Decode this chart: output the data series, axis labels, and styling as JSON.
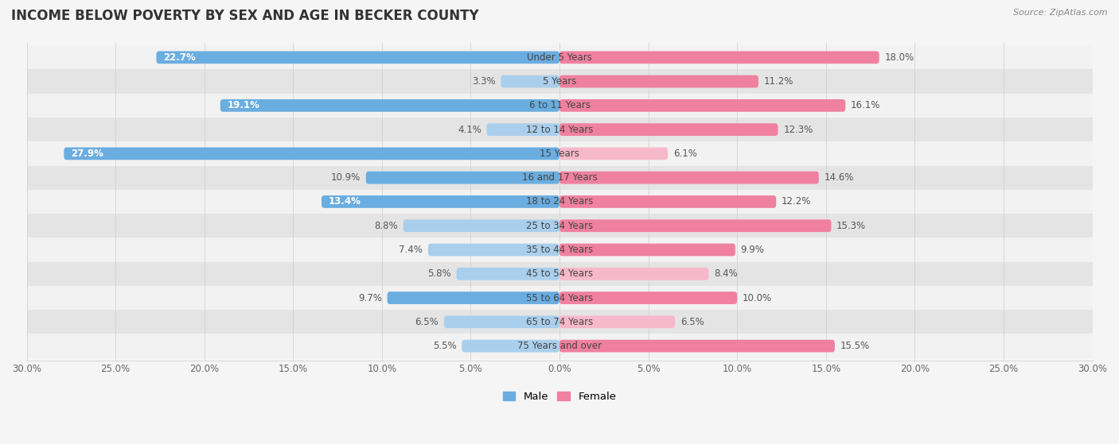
{
  "title": "INCOME BELOW POVERTY BY SEX AND AGE IN BECKER COUNTY",
  "source": "Source: ZipAtlas.com",
  "categories": [
    "Under 5 Years",
    "5 Years",
    "6 to 11 Years",
    "12 to 14 Years",
    "15 Years",
    "16 and 17 Years",
    "18 to 24 Years",
    "25 to 34 Years",
    "35 to 44 Years",
    "45 to 54 Years",
    "55 to 64 Years",
    "65 to 74 Years",
    "75 Years and over"
  ],
  "male_values": [
    22.7,
    3.3,
    19.1,
    4.1,
    27.9,
    10.9,
    13.4,
    8.8,
    7.4,
    5.8,
    9.7,
    6.5,
    5.5
  ],
  "female_values": [
    18.0,
    11.2,
    16.1,
    12.3,
    6.1,
    14.6,
    12.2,
    15.3,
    9.9,
    8.4,
    10.0,
    6.5,
    15.5
  ],
  "male_color_dark": "#6aade0",
  "male_color_light": "#aacfec",
  "female_color_dark": "#f080a0",
  "female_color_light": "#f8b8cc",
  "male_label": "Male",
  "female_label": "Female",
  "xlim": 30.0,
  "bar_height": 0.52,
  "row_color_odd": "#f2f2f2",
  "row_color_even": "#e4e4e4",
  "title_fontsize": 12,
  "label_fontsize": 8.5,
  "value_fontsize": 8.5,
  "tick_fontsize": 8.5,
  "source_fontsize": 8
}
